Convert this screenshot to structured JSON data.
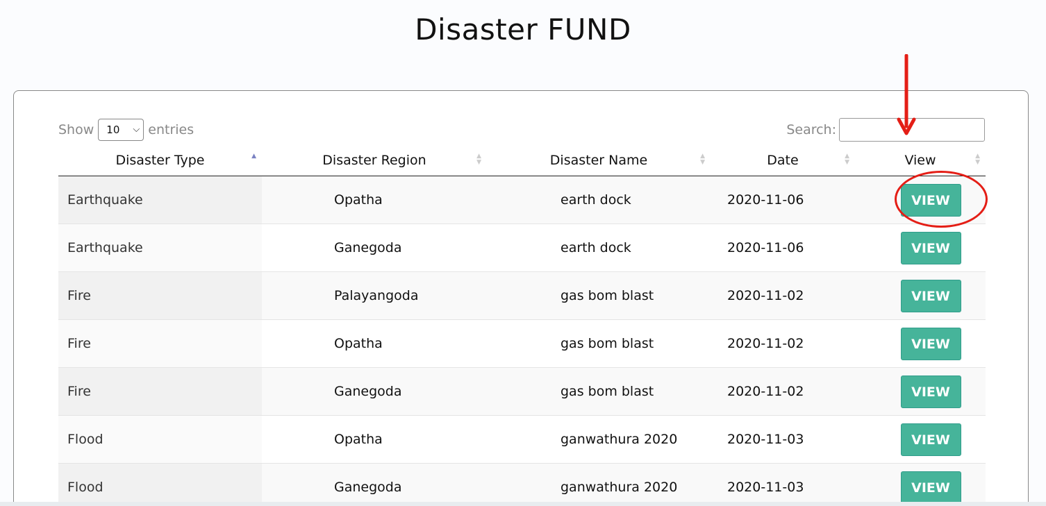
{
  "page": {
    "title": "Disaster FUND"
  },
  "controls": {
    "show_label": "Show",
    "entries_label": "entries",
    "length_value": "10",
    "search_label": "Search:",
    "search_value": ""
  },
  "table": {
    "columns": [
      {
        "label": "Disaster Type",
        "sort": "asc"
      },
      {
        "label": "Disaster Region",
        "sort": "none"
      },
      {
        "label": "Disaster Name",
        "sort": "none"
      },
      {
        "label": "Date",
        "sort": "none"
      },
      {
        "label": "View",
        "sort": "none"
      }
    ],
    "rows": [
      {
        "type": "Earthquake",
        "region": "Opatha",
        "name": "earth dock",
        "date": "2020-11-06",
        "action": "VIEW"
      },
      {
        "type": "Earthquake",
        "region": "Ganegoda",
        "name": "earth dock",
        "date": "2020-11-06",
        "action": "VIEW"
      },
      {
        "type": "Fire",
        "region": "Palayangoda",
        "name": "gas bom blast",
        "date": "2020-11-02",
        "action": "VIEW"
      },
      {
        "type": "Fire",
        "region": "Opatha",
        "name": "gas bom blast",
        "date": "2020-11-02",
        "action": "VIEW"
      },
      {
        "type": "Fire",
        "region": "Ganegoda",
        "name": "gas bom blast",
        "date": "2020-11-02",
        "action": "VIEW"
      },
      {
        "type": "Flood",
        "region": "Opatha",
        "name": "ganwathura 2020",
        "date": "2020-11-03",
        "action": "VIEW"
      },
      {
        "type": "Flood",
        "region": "Ganegoda",
        "name": "ganwathura 2020",
        "date": "2020-11-03",
        "action": "VIEW"
      }
    ]
  },
  "colors": {
    "view_button": "#46b49a",
    "annotation": "#e41e16"
  }
}
